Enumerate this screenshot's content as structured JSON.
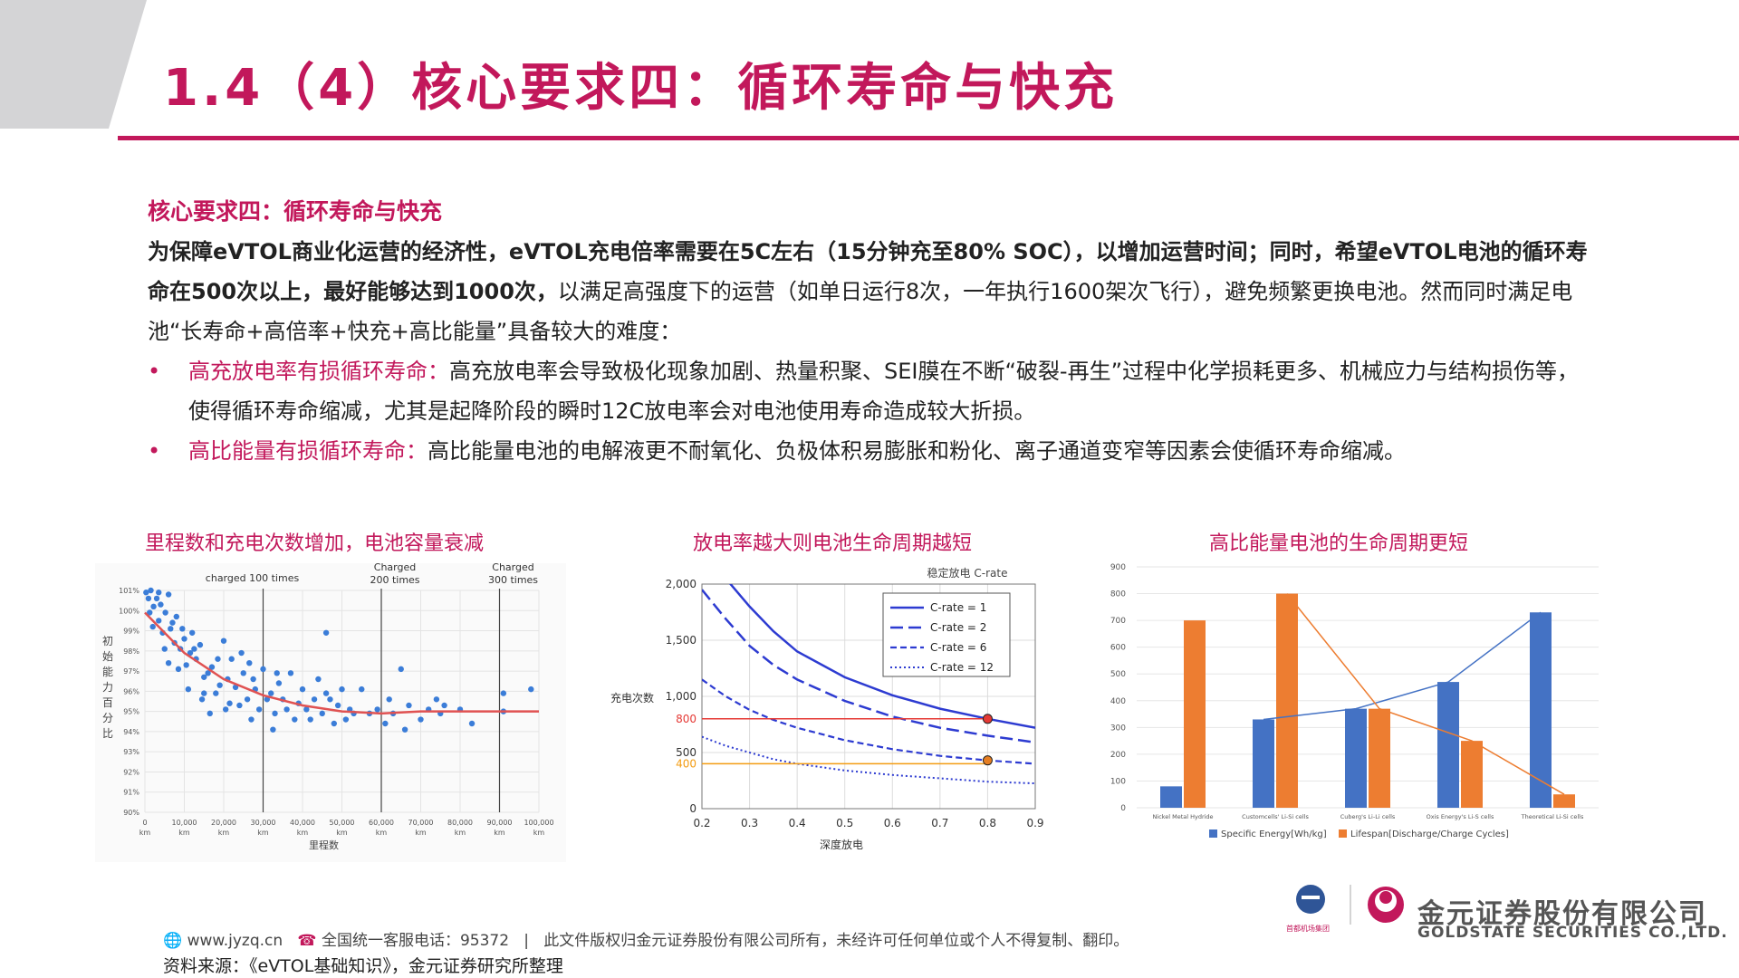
{
  "header": {
    "title": "1.4（4）核心要求四：循环寿命与快充"
  },
  "content": {
    "subheading": "核心要求四：循环寿命与快充",
    "para_bold_1": "为保障eVTOL商业化运营的经济性，eVTOL充电倍率需要在5C左右（15分钟充至80% SOC），以增加运营时间；同时，希望eVTOL电池的循环寿命在500次以上，最好能够达到1000次，",
    "para_normal_1": "以满足高强度下的运营（如单日运行8次，一年执行1600架次飞行），避免频繁更换电池。然而同时满足电池“长寿命+高倍率+快充+高比能量”具备较大的难度：",
    "bullet1_label": "高充放电率有损循环寿命：",
    "bullet1_text": "高充放电率会导致极化现象加剧、热量积聚、SEI膜在不断“破裂-再生”过程中化学损耗更多、机械应力与结构损伤等，使得循环寿命缩减，尤其是起降阶段的瞬时12C放电率会对电池使用寿命造成较大折损。",
    "bullet2_label": "高比能量有损循环寿命：",
    "bullet2_text": "高比能量电池的电解液更不耐氧化、负极体积易膨胀和粉化、离子通道变窄等因素会使循环寿命缩减。"
  },
  "figures": {
    "fig1_title": "里程数和充电次数增加，电池容量衰减",
    "fig2_title": "放电率越大则电池生命周期越短",
    "fig3_title": "高比能量电池的生命周期更短"
  },
  "chart_data": [
    {
      "type": "scatter",
      "ylabel": "初始能力百分比",
      "xlabel": "里程数",
      "x_ticks": [
        "0 km",
        "10,000 km",
        "20,000 km",
        "30,000 km",
        "40,000 km",
        "50,000 km",
        "60,000 km",
        "70,000 km",
        "80,000 km",
        "90,000 km",
        "100,000 km"
      ],
      "y_ticks": [
        "101%",
        "100%",
        "99%",
        "98%",
        "97%",
        "96%",
        "95%",
        "94%",
        "93%",
        "92%",
        "91%",
        "90%"
      ],
      "xlim": [
        0,
        100000
      ],
      "ylim": [
        90,
        101
      ],
      "annotations": [
        "charged 100 times",
        "Charged 200 times",
        "Charged 300 times"
      ],
      "annotation_x": [
        30000,
        60000,
        90000
      ],
      "points": [
        [
          300,
          100.9
        ],
        [
          900,
          100.6
        ],
        [
          1500,
          101.0
        ],
        [
          2200,
          100.2
        ],
        [
          3000,
          100.6
        ],
        [
          3500,
          99.5
        ],
        [
          4000,
          100.3
        ],
        [
          5200,
          99.9
        ],
        [
          6000,
          100.8
        ],
        [
          2000,
          99.2
        ],
        [
          4500,
          98.9
        ],
        [
          6500,
          99.1
        ],
        [
          7500,
          98.4
        ],
        [
          8000,
          99.7
        ],
        [
          9000,
          98.1
        ],
        [
          10000,
          98.6
        ],
        [
          10500,
          97.3
        ],
        [
          11500,
          97.9
        ],
        [
          12000,
          98.9
        ],
        [
          13000,
          97.6
        ],
        [
          14000,
          98.3
        ],
        [
          15000,
          96.7
        ],
        [
          16000,
          96.9
        ],
        [
          14500,
          95.6
        ],
        [
          17000,
          97.2
        ],
        [
          18000,
          95.9
        ],
        [
          19000,
          96.3
        ],
        [
          20000,
          98.5
        ],
        [
          20500,
          95.1
        ],
        [
          21000,
          96.6
        ],
        [
          22000,
          97.6
        ],
        [
          23000,
          96.2
        ],
        [
          24000,
          95.3
        ],
        [
          25000,
          96.9
        ],
        [
          26000,
          95.6
        ],
        [
          27000,
          94.6
        ],
        [
          28000,
          96.1
        ],
        [
          29000,
          95.1
        ],
        [
          30000,
          97.1
        ],
        [
          31000,
          95.6
        ],
        [
          32000,
          95.9
        ],
        [
          33000,
          94.9
        ],
        [
          34000,
          96.4
        ],
        [
          35000,
          95.6
        ],
        [
          36000,
          95.1
        ],
        [
          37000,
          96.9
        ],
        [
          38000,
          94.6
        ],
        [
          39000,
          95.4
        ],
        [
          40000,
          96.1
        ],
        [
          41000,
          95.1
        ],
        [
          42000,
          94.6
        ],
        [
          43000,
          95.6
        ],
        [
          44000,
          96.6
        ],
        [
          45000,
          94.9
        ],
        [
          46000,
          98.9
        ],
        [
          47000,
          95.6
        ],
        [
          48000,
          94.4
        ],
        [
          49000,
          95.3
        ],
        [
          50000,
          96.1
        ],
        [
          51000,
          94.6
        ],
        [
          52000,
          95.1
        ],
        [
          55000,
          96.1
        ],
        [
          57000,
          94.9
        ],
        [
          59000,
          95.1
        ],
        [
          61000,
          94.4
        ],
        [
          62000,
          95.6
        ],
        [
          63000,
          94.9
        ],
        [
          65000,
          97.1
        ],
        [
          66000,
          94.1
        ],
        [
          67000,
          95.3
        ],
        [
          70000,
          94.6
        ],
        [
          72000,
          95.1
        ],
        [
          74000,
          95.6
        ],
        [
          75000,
          94.9
        ],
        [
          76000,
          95.3
        ],
        [
          80000,
          95.1
        ],
        [
          83000,
          94.4
        ],
        [
          91000,
          95.9
        ],
        [
          98000,
          96.1
        ],
        [
          91000,
          95.0
        ],
        [
          15000,
          95.9
        ],
        [
          8500,
          97.1
        ],
        [
          11000,
          96.1
        ],
        [
          18500,
          97.6
        ],
        [
          24500,
          97.9
        ],
        [
          27500,
          96.6
        ],
        [
          33500,
          96.9
        ],
        [
          12500,
          98.1
        ],
        [
          21500,
          95.4
        ],
        [
          6000,
          97.4
        ],
        [
          5000,
          98.1
        ],
        [
          7000,
          99.4
        ],
        [
          3500,
          100.9
        ],
        [
          1200,
          99.9
        ],
        [
          9500,
          99.1
        ],
        [
          16500,
          94.9
        ],
        [
          26500,
          97.4
        ],
        [
          32500,
          94.1
        ],
        [
          46000,
          95.9
        ],
        [
          53000,
          94.9
        ]
      ],
      "trend_x": [
        0,
        10000,
        20000,
        30000,
        40000,
        50000,
        60000,
        70000,
        80000,
        90000,
        100000
      ],
      "trend_y": [
        99.9,
        97.9,
        96.6,
        95.8,
        95.3,
        95.0,
        94.9,
        95.0,
        95.0,
        95.0,
        95.0
      ]
    },
    {
      "type": "line",
      "title": "稳定放电 C-rate",
      "xlabel": "深度放电",
      "ylabel": "充电次数",
      "x_ticks": [
        "0.2",
        "0.3",
        "0.4",
        "0.5",
        "0.6",
        "0.7",
        "0.8",
        "0.9"
      ],
      "y_ticks": [
        "0",
        "500",
        "1,000",
        "1,500",
        "2,000"
      ],
      "xlim": [
        0.2,
        0.9
      ],
      "ylim": [
        0,
        2000
      ],
      "x": [
        0.2,
        0.25,
        0.3,
        0.35,
        0.4,
        0.5,
        0.6,
        0.7,
        0.8,
        0.9
      ],
      "series": [
        {
          "name": "C-rate = 1",
          "values": [
            2400,
            2050,
            1800,
            1580,
            1400,
            1170,
            1010,
            890,
            800,
            720
          ]
        },
        {
          "name": "C-rate = 2",
          "values": [
            1950,
            1690,
            1450,
            1280,
            1150,
            960,
            820,
            720,
            650,
            590
          ]
        },
        {
          "name": "C-rate = 6",
          "values": [
            1150,
            1000,
            880,
            790,
            720,
            610,
            530,
            470,
            430,
            400
          ]
        },
        {
          "name": "C-rate = 12",
          "values": [
            640,
            560,
            500,
            440,
            400,
            340,
            300,
            270,
            240,
            225
          ]
        }
      ],
      "reference_lines": [
        {
          "label": "800",
          "value": 800
        },
        {
          "label": "400",
          "value": 400
        }
      ],
      "markers": [
        {
          "x": 0.8,
          "y": 800
        },
        {
          "x": 0.8,
          "y": 430
        }
      ]
    },
    {
      "type": "bar",
      "categories": [
        "Nickel Metal Hydride",
        "Customcells' Li-Si cells",
        "Cuberg's Li-Li cells",
        "Oxis Energy's Li-S cells",
        "Theoretical Li-Si cells"
      ],
      "y_ticks": [
        "0",
        "100",
        "200",
        "300",
        "400",
        "500",
        "600",
        "700",
        "800",
        "900"
      ],
      "ylim": [
        0,
        900
      ],
      "series": [
        {
          "name": "Specific Energy[Wh/kg]",
          "values": [
            80,
            330,
            370,
            470,
            730
          ]
        },
        {
          "name": "Lifespan[Discharge/Charge Cycles]",
          "values": [
            700,
            800,
            370,
            250,
            50
          ]
        }
      ],
      "colors": {
        "energy": "#4472c4",
        "lifespan": "#ed7d31"
      }
    }
  ],
  "footer": {
    "website": "www.jyzq.cn",
    "hotline": "全国统一客服电话：95372",
    "notice": "此文件版权归金元证券股份有限公司所有，未经许可任何单位或个人不得复制、翻印。",
    "source": "资料来源：《eVTOL基础知识》，金元证券研究所整理"
  },
  "logo": {
    "cn": "金元证券股份有限公司",
    "en": "GOLDSTATE SECURITIES CO.,LTD.",
    "group": "首都机场集团"
  },
  "colors": {
    "accent": "#c2185b",
    "gray": "#d4d4d6"
  }
}
